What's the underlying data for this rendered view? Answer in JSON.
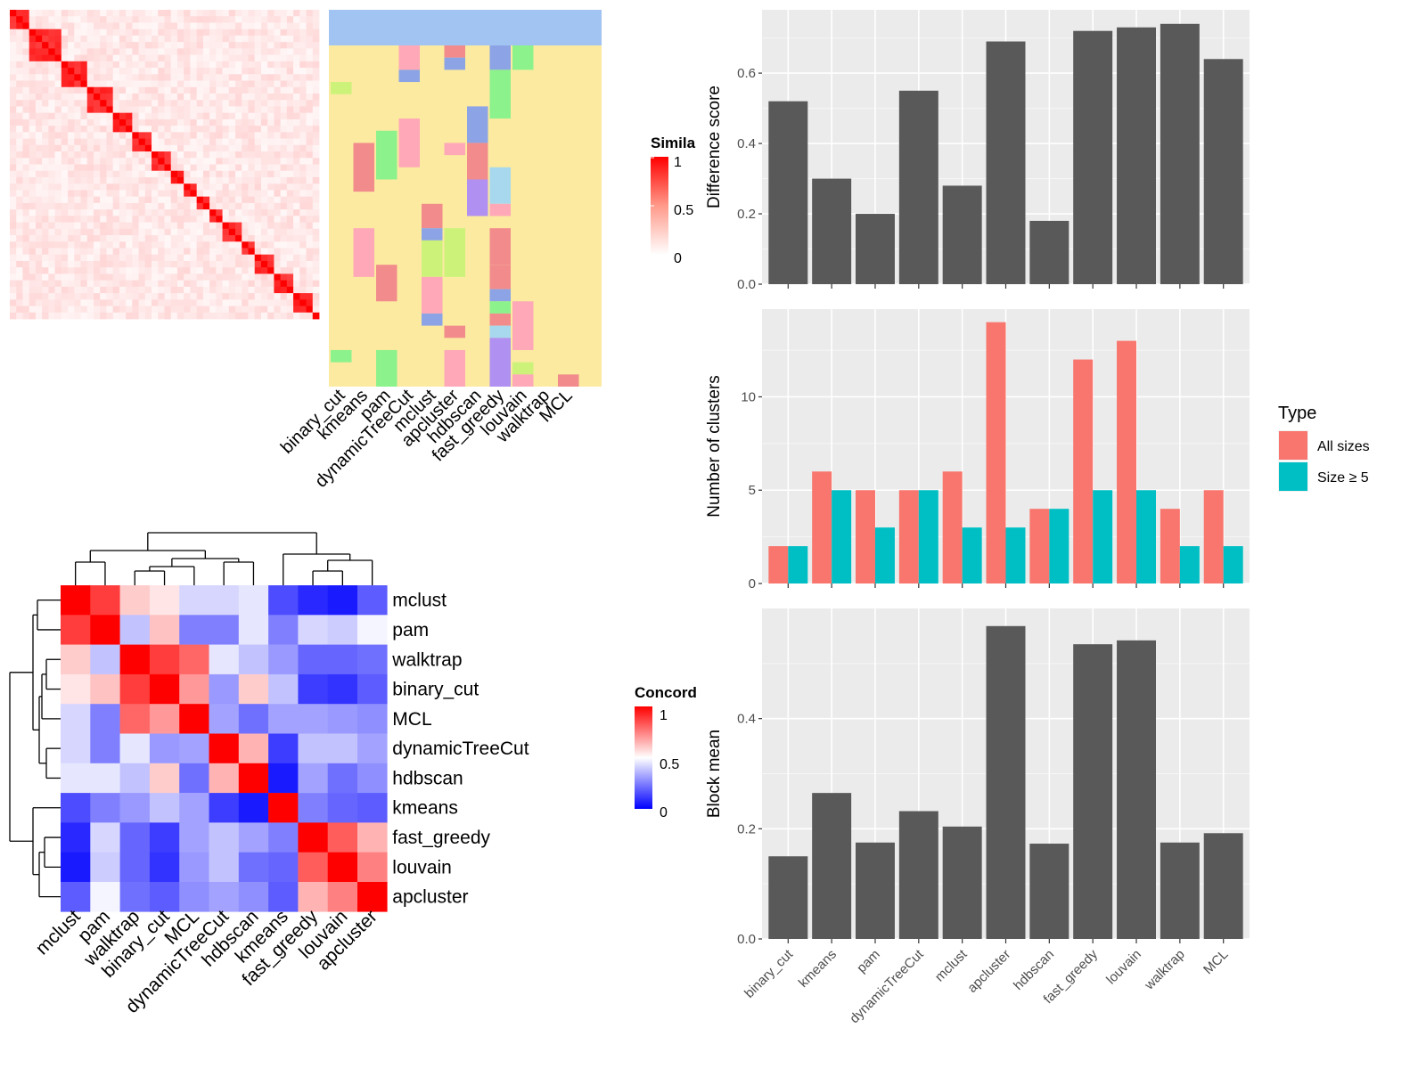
{
  "chart_data": [
    {
      "type": "heatmap",
      "name": "similarity-heatmap",
      "legend_title": "Simila",
      "legend_ticks": [
        "1",
        "0.5",
        "0"
      ],
      "annotation_columns": [
        "binary_cut",
        "kmeans",
        "pam",
        "dynamicTreeCut",
        "mclust",
        "apcluster",
        "hdbscan",
        "fast_greedy",
        "louvain",
        "walktrap",
        "MCL"
      ]
    },
    {
      "type": "heatmap",
      "name": "concordance-heatmap",
      "legend_title": "Concord",
      "legend_ticks": [
        "1",
        "0.5",
        "0"
      ],
      "rows": [
        "mclust",
        "pam",
        "walktrap",
        "binary_cut",
        "MCL",
        "dynamicTreeCut",
        "hdbscan",
        "kmeans",
        "fast_greedy",
        "louvain",
        "apcluster"
      ],
      "columns": [
        "mclust",
        "pam",
        "walktrap",
        "binary_cut",
        "MCL",
        "dynamicTreeCut",
        "hdbscan",
        "kmeans",
        "fast_greedy",
        "louvain",
        "apcluster"
      ],
      "values": [
        [
          1.0,
          0.88,
          0.6,
          0.55,
          0.42,
          0.42,
          0.45,
          0.15,
          0.08,
          0.05,
          0.18
        ],
        [
          0.88,
          1.0,
          0.38,
          0.62,
          0.25,
          0.25,
          0.45,
          0.25,
          0.42,
          0.4,
          0.48
        ],
        [
          0.6,
          0.38,
          1.0,
          0.88,
          0.8,
          0.45,
          0.38,
          0.3,
          0.2,
          0.2,
          0.22
        ],
        [
          0.55,
          0.62,
          0.88,
          1.0,
          0.7,
          0.3,
          0.6,
          0.38,
          0.12,
          0.1,
          0.18
        ],
        [
          0.42,
          0.25,
          0.8,
          0.7,
          1.0,
          0.32,
          0.22,
          0.32,
          0.32,
          0.3,
          0.28
        ],
        [
          0.42,
          0.25,
          0.45,
          0.3,
          0.32,
          1.0,
          0.65,
          0.12,
          0.38,
          0.38,
          0.32
        ],
        [
          0.45,
          0.45,
          0.38,
          0.6,
          0.22,
          0.65,
          1.0,
          0.05,
          0.32,
          0.22,
          0.28
        ],
        [
          0.15,
          0.25,
          0.3,
          0.38,
          0.32,
          0.12,
          0.05,
          1.0,
          0.25,
          0.2,
          0.18
        ],
        [
          0.08,
          0.42,
          0.2,
          0.12,
          0.32,
          0.38,
          0.32,
          0.25,
          1.0,
          0.82,
          0.65
        ],
        [
          0.05,
          0.4,
          0.2,
          0.1,
          0.3,
          0.38,
          0.22,
          0.2,
          0.82,
          1.0,
          0.75
        ],
        [
          0.18,
          0.48,
          0.22,
          0.18,
          0.28,
          0.32,
          0.28,
          0.18,
          0.65,
          0.75,
          1.0
        ]
      ]
    },
    {
      "type": "bar",
      "name": "difference-score",
      "categories": [
        "binary_cut",
        "kmeans",
        "pam",
        "dynamicTreeCut",
        "mclust",
        "apcluster",
        "hdbscan",
        "fast_greedy",
        "louvain",
        "walktrap",
        "MCL"
      ],
      "values": [
        0.52,
        0.3,
        0.2,
        0.55,
        0.28,
        0.69,
        0.18,
        0.72,
        0.73,
        0.74,
        0.64
      ],
      "ylabel": "Difference score",
      "ylim": [
        0,
        0.78
      ],
      "yticks": [
        "0.0",
        "0.2",
        "0.4",
        "0.6"
      ]
    },
    {
      "type": "bar",
      "name": "number-of-clusters",
      "categories": [
        "binary_cut",
        "kmeans",
        "pam",
        "dynamicTreeCut",
        "mclust",
        "apcluster",
        "hdbscan",
        "fast_greedy",
        "louvain",
        "walktrap",
        "MCL"
      ],
      "series": [
        {
          "name": "All sizes",
          "color": "#F8766D",
          "values": [
            2,
            6,
            5,
            5,
            6,
            14,
            4,
            12,
            13,
            4,
            5
          ]
        },
        {
          "name": "Size ≥ 5",
          "color": "#00BFC4",
          "values": [
            2,
            5,
            3,
            5,
            3,
            3,
            4,
            5,
            5,
            2,
            2
          ]
        }
      ],
      "ylabel": "Number of clusters",
      "ylim": [
        0,
        14.7
      ],
      "yticks": [
        "0",
        "5",
        "10"
      ],
      "legend_title": "Type"
    },
    {
      "type": "bar",
      "name": "block-mean",
      "categories": [
        "binary_cut",
        "kmeans",
        "pam",
        "dynamicTreeCut",
        "mclust",
        "apcluster",
        "hdbscan",
        "fast_greedy",
        "louvain",
        "walktrap",
        "MCL"
      ],
      "values": [
        0.15,
        0.265,
        0.175,
        0.232,
        0.204,
        0.568,
        0.173,
        0.535,
        0.542,
        0.175,
        0.192
      ],
      "ylabel": "Block mean",
      "ylim": [
        0,
        0.6
      ],
      "yticks": [
        "0.0",
        "0.2",
        "0.4"
      ]
    }
  ]
}
